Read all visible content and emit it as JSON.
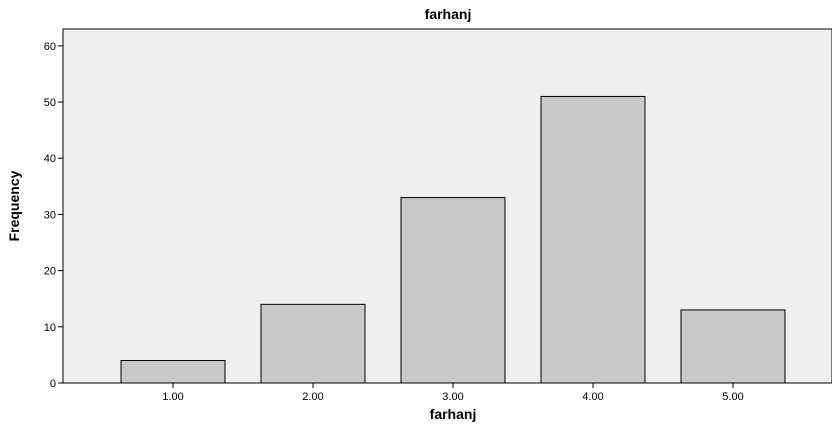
{
  "chart_data": {
    "type": "bar",
    "title": "farhanj",
    "xlabel": "farhanj",
    "ylabel": "Frequency",
    "categories": [
      "1.00",
      "2.00",
      "3.00",
      "4.00",
      "5.00"
    ],
    "values": [
      4,
      14,
      33,
      51,
      13
    ],
    "ylim": [
      0,
      63
    ],
    "yticks": [
      "0",
      "10",
      "20",
      "30",
      "40",
      "50",
      "60"
    ],
    "grid": false,
    "legend": "none",
    "colors": {
      "plot_background": "#efefef",
      "bar_fill": "#c9c9c9",
      "bar_stroke": "#000000",
      "axis": "#000000"
    }
  }
}
